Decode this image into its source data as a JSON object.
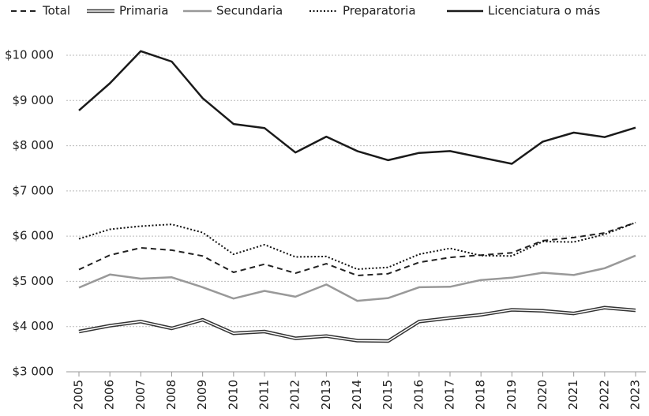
{
  "chart_data": {
    "type": "line",
    "x": [
      2005,
      2006,
      2007,
      2008,
      2009,
      2010,
      2011,
      2012,
      2013,
      2014,
      2015,
      2016,
      2017,
      2018,
      2019,
      2020,
      2021,
      2022,
      2023
    ],
    "xlim": [
      2005,
      2023
    ],
    "ylim": [
      3000,
      10000
    ],
    "yticks": [
      {
        "value": 3000,
        "label": "$3 000"
      },
      {
        "value": 4000,
        "label": "$4 000"
      },
      {
        "value": 5000,
        "label": "$5 000"
      },
      {
        "value": 6000,
        "label": "$6 000"
      },
      {
        "value": 7000,
        "label": "$7 000"
      },
      {
        "value": 8000,
        "label": "$8 000"
      },
      {
        "value": 9000,
        "label": "$9 000"
      },
      {
        "value": 10000,
        "label": "$10 000"
      }
    ],
    "grid": true,
    "legend": "top",
    "series": [
      {
        "name": "Total",
        "color": "#222222",
        "style": "dashed",
        "width": 2,
        "values": [
          5260,
          5580,
          5740,
          5690,
          5560,
          5200,
          5380,
          5180,
          5390,
          5130,
          5170,
          5420,
          5530,
          5580,
          5630,
          5900,
          5970,
          6070,
          6300
        ]
      },
      {
        "name": "Primaria",
        "color": "#333333",
        "style": "double",
        "width": 4.5,
        "values": [
          3890,
          4020,
          4110,
          3960,
          4150,
          3850,
          3890,
          3740,
          3790,
          3690,
          3680,
          4110,
          4190,
          4260,
          4370,
          4350,
          4290,
          4420,
          4360
        ]
      },
      {
        "name": "Secundaria",
        "color": "#999999",
        "style": "solid",
        "width": 2.5,
        "values": [
          4860,
          5150,
          5060,
          5090,
          4870,
          4620,
          4790,
          4660,
          4930,
          4570,
          4630,
          4870,
          4880,
          5030,
          5080,
          5190,
          5140,
          5290,
          5570
        ]
      },
      {
        "name": "Preparatoria",
        "color": "#111111",
        "style": "dotted",
        "width": 2,
        "values": [
          5940,
          6150,
          6220,
          6260,
          6080,
          5600,
          5810,
          5540,
          5550,
          5270,
          5310,
          5600,
          5730,
          5570,
          5560,
          5880,
          5870,
          6040,
          6300
        ]
      },
      {
        "name": "Licenciatura o más",
        "color": "#1a1a1a",
        "style": "solid",
        "width": 2.5,
        "values": [
          8780,
          9380,
          10090,
          9860,
          9050,
          8480,
          8390,
          7850,
          8200,
          7880,
          7680,
          7840,
          7880,
          7740,
          7600,
          8090,
          8290,
          8190,
          8400
        ]
      }
    ]
  }
}
